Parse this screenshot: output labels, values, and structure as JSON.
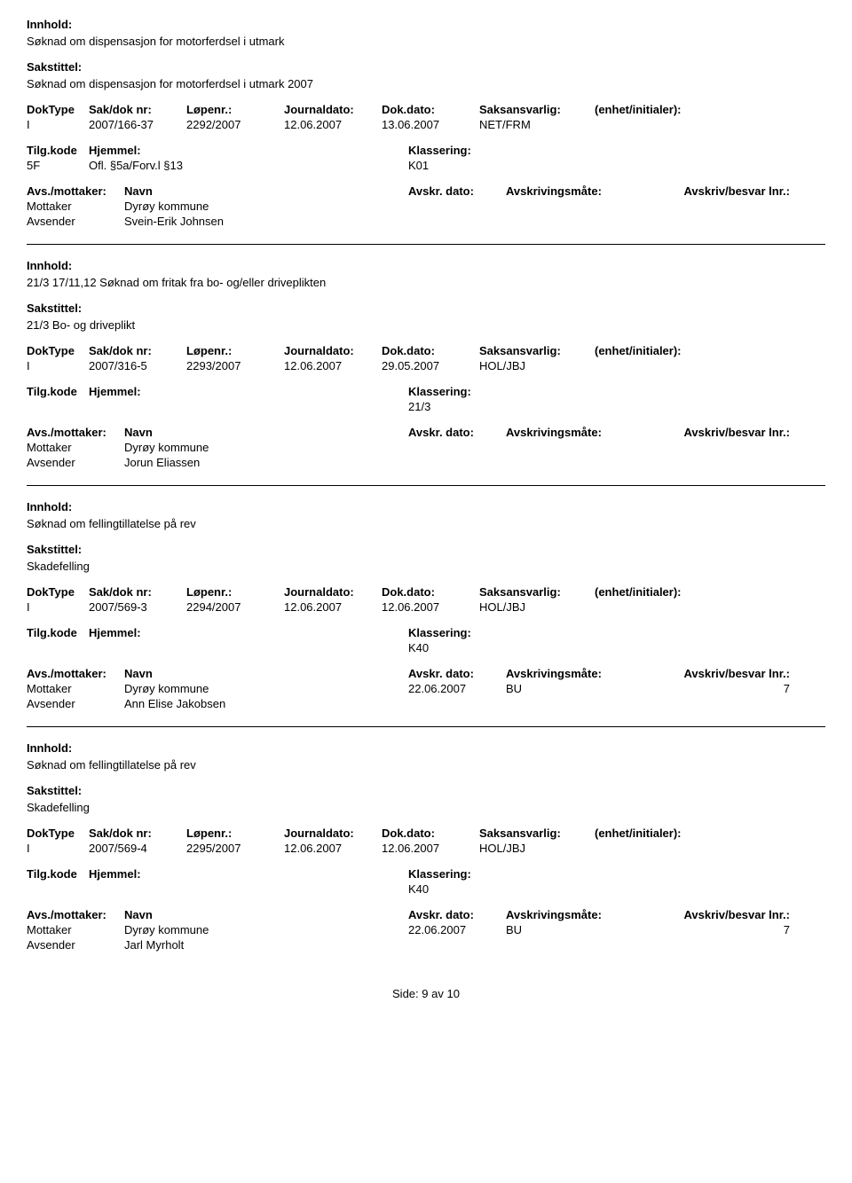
{
  "labels": {
    "innhold": "Innhold:",
    "sakstittel": "Sakstittel:",
    "doktype": "DokType",
    "sakdok": "Sak/dok nr:",
    "lopenr": "Løpenr.:",
    "journaldato": "Journaldato:",
    "dokdato": "Dok.dato:",
    "saksansvarlig": "Saksansvarlig:",
    "enhet": "(enhet/initialer):",
    "tilgkode": "Tilg.kode",
    "hjemmel": "Hjemmel:",
    "klassering": "Klassering:",
    "avsmottaker": "Avs./mottaker:",
    "navn": "Navn",
    "avskrdato": "Avskr. dato:",
    "avskrivingsmote": "Avskrivingsmåte:",
    "avskrivbesvar": "Avskriv/besvar lnr.:",
    "mottaker": "Mottaker",
    "avsender": "Avsender"
  },
  "entries": [
    {
      "innhold": "Søknad om dispensasjon for motorferdsel i utmark",
      "sakstittel": "Søknad om dispensasjon for motorferdsel i utmark 2007",
      "doktype": "I",
      "sakdok": "2007/166-37",
      "lopenr": "2292/2007",
      "journaldato": "12.06.2007",
      "dokdato": "13.06.2007",
      "saksansvarlig": "NET/FRM",
      "tilgkode": "5F",
      "hjemmel": "Ofl. §5a/Forv.l §13",
      "klassering": "K01",
      "mottaker": "Dyrøy kommune",
      "avsender": "Svein-Erik Johnsen",
      "avskrdato": "",
      "avskrmote": "",
      "lnr": ""
    },
    {
      "innhold": "21/3 17/11,12 Søknad om fritak fra bo- og/eller driveplikten",
      "sakstittel": "21/3 Bo- og driveplikt",
      "doktype": "I",
      "sakdok": "2007/316-5",
      "lopenr": "2293/2007",
      "journaldato": "12.06.2007",
      "dokdato": "29.05.2007",
      "saksansvarlig": "HOL/JBJ",
      "tilgkode": "",
      "hjemmel": "",
      "klassering": "21/3",
      "mottaker": "Dyrøy kommune",
      "avsender": "Jorun Eliassen",
      "avskrdato": "",
      "avskrmote": "",
      "lnr": ""
    },
    {
      "innhold": "Søknad om fellingtillatelse på rev",
      "sakstittel": "Skadefelling",
      "doktype": "I",
      "sakdok": "2007/569-3",
      "lopenr": "2294/2007",
      "journaldato": "12.06.2007",
      "dokdato": "12.06.2007",
      "saksansvarlig": "HOL/JBJ",
      "tilgkode": "",
      "hjemmel": "",
      "klassering": "K40",
      "mottaker": "Dyrøy kommune",
      "avsender": "Ann Elise Jakobsen",
      "avskrdato": "22.06.2007",
      "avskrmote": "BU",
      "lnr": "7"
    },
    {
      "innhold": "Søknad om fellingtillatelse på rev",
      "sakstittel": "Skadefelling",
      "doktype": "I",
      "sakdok": "2007/569-4",
      "lopenr": "2295/2007",
      "journaldato": "12.06.2007",
      "dokdato": "12.06.2007",
      "saksansvarlig": "HOL/JBJ",
      "tilgkode": "",
      "hjemmel": "",
      "klassering": "K40",
      "mottaker": "Dyrøy kommune",
      "avsender": "Jarl Myrholt",
      "avskrdato": "22.06.2007",
      "avskrmote": "BU",
      "lnr": "7"
    }
  ],
  "footer": {
    "side_label": "Side:",
    "page": "9",
    "av": "av",
    "total": "10"
  }
}
